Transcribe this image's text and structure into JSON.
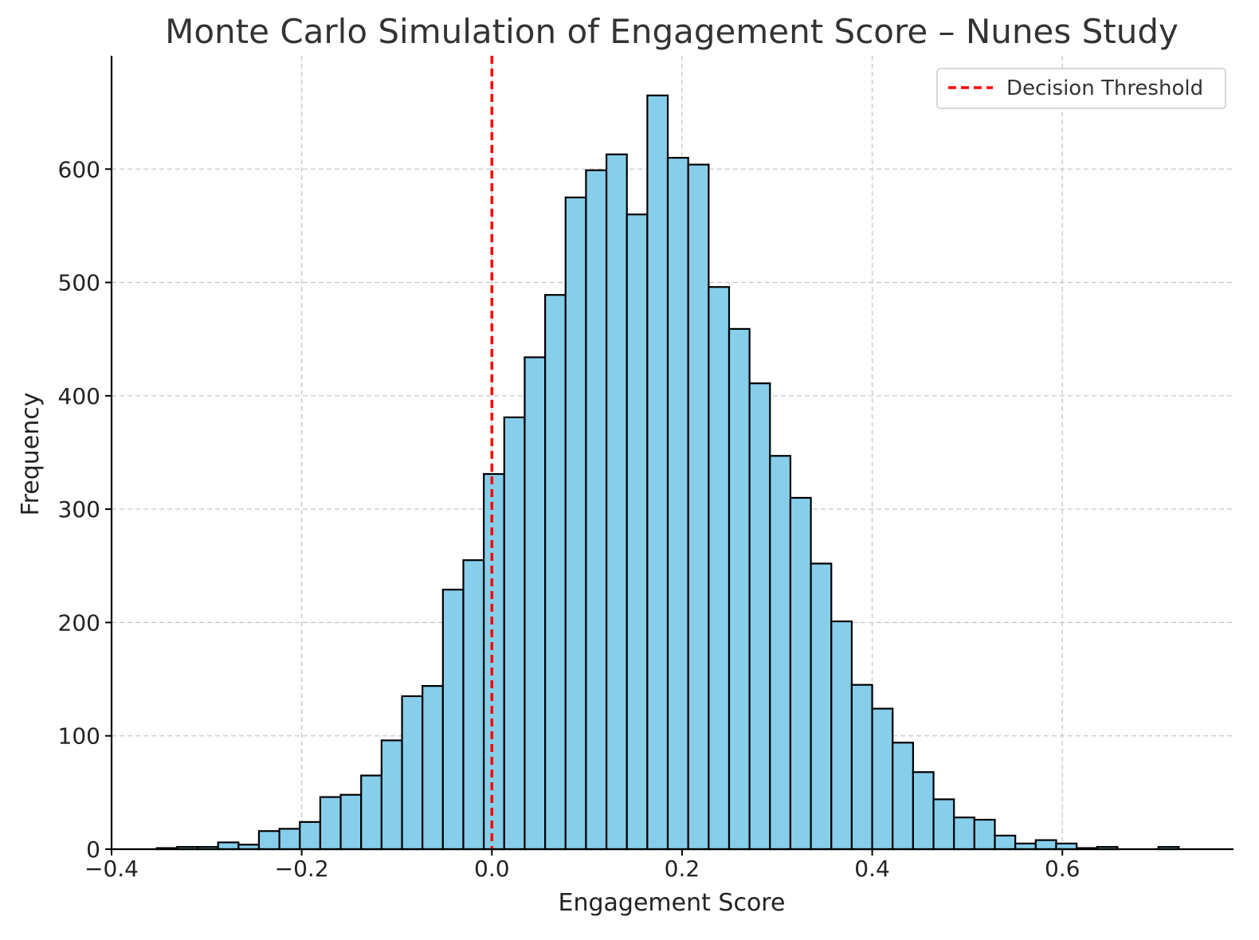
{
  "chart_data": {
    "type": "bar",
    "title": "Monte Carlo Simulation of Engagement Score – Nunes Study",
    "xlabel": "Engagement Score",
    "ylabel": "Frequency",
    "xlim": [
      -0.4,
      0.78
    ],
    "ylim": [
      0,
      700
    ],
    "x_ticks": [
      -0.4,
      -0.2,
      0.0,
      0.2,
      0.4,
      0.6
    ],
    "x_tick_labels": [
      "−0.4",
      "−0.2",
      "0.0",
      "0.2",
      "0.4",
      "0.6"
    ],
    "y_ticks": [
      0,
      100,
      200,
      300,
      400,
      500,
      600
    ],
    "y_tick_labels": [
      "0",
      "100",
      "200",
      "300",
      "400",
      "500",
      "600"
    ],
    "grid": true,
    "bar_color": "#87ceeb",
    "bar_edge_color": "#000000",
    "bins": {
      "start": -0.3525,
      "width": 0.0215,
      "counts": [
        1,
        2,
        2,
        6,
        4,
        16,
        18,
        24,
        46,
        48,
        65,
        96,
        135,
        144,
        229,
        255,
        331,
        381,
        434,
        489,
        575,
        599,
        613,
        560,
        665,
        610,
        604,
        496,
        459,
        411,
        347,
        310,
        252,
        201,
        145,
        124,
        94,
        68,
        44,
        28,
        26,
        12,
        5,
        8,
        5,
        1,
        2,
        0,
        0,
        2
      ]
    },
    "threshold": {
      "x": 0.0,
      "color": "#ff0000",
      "label": "Decision Threshold"
    },
    "legend": {
      "position": "top-right",
      "entries": [
        "Decision Threshold"
      ]
    }
  }
}
